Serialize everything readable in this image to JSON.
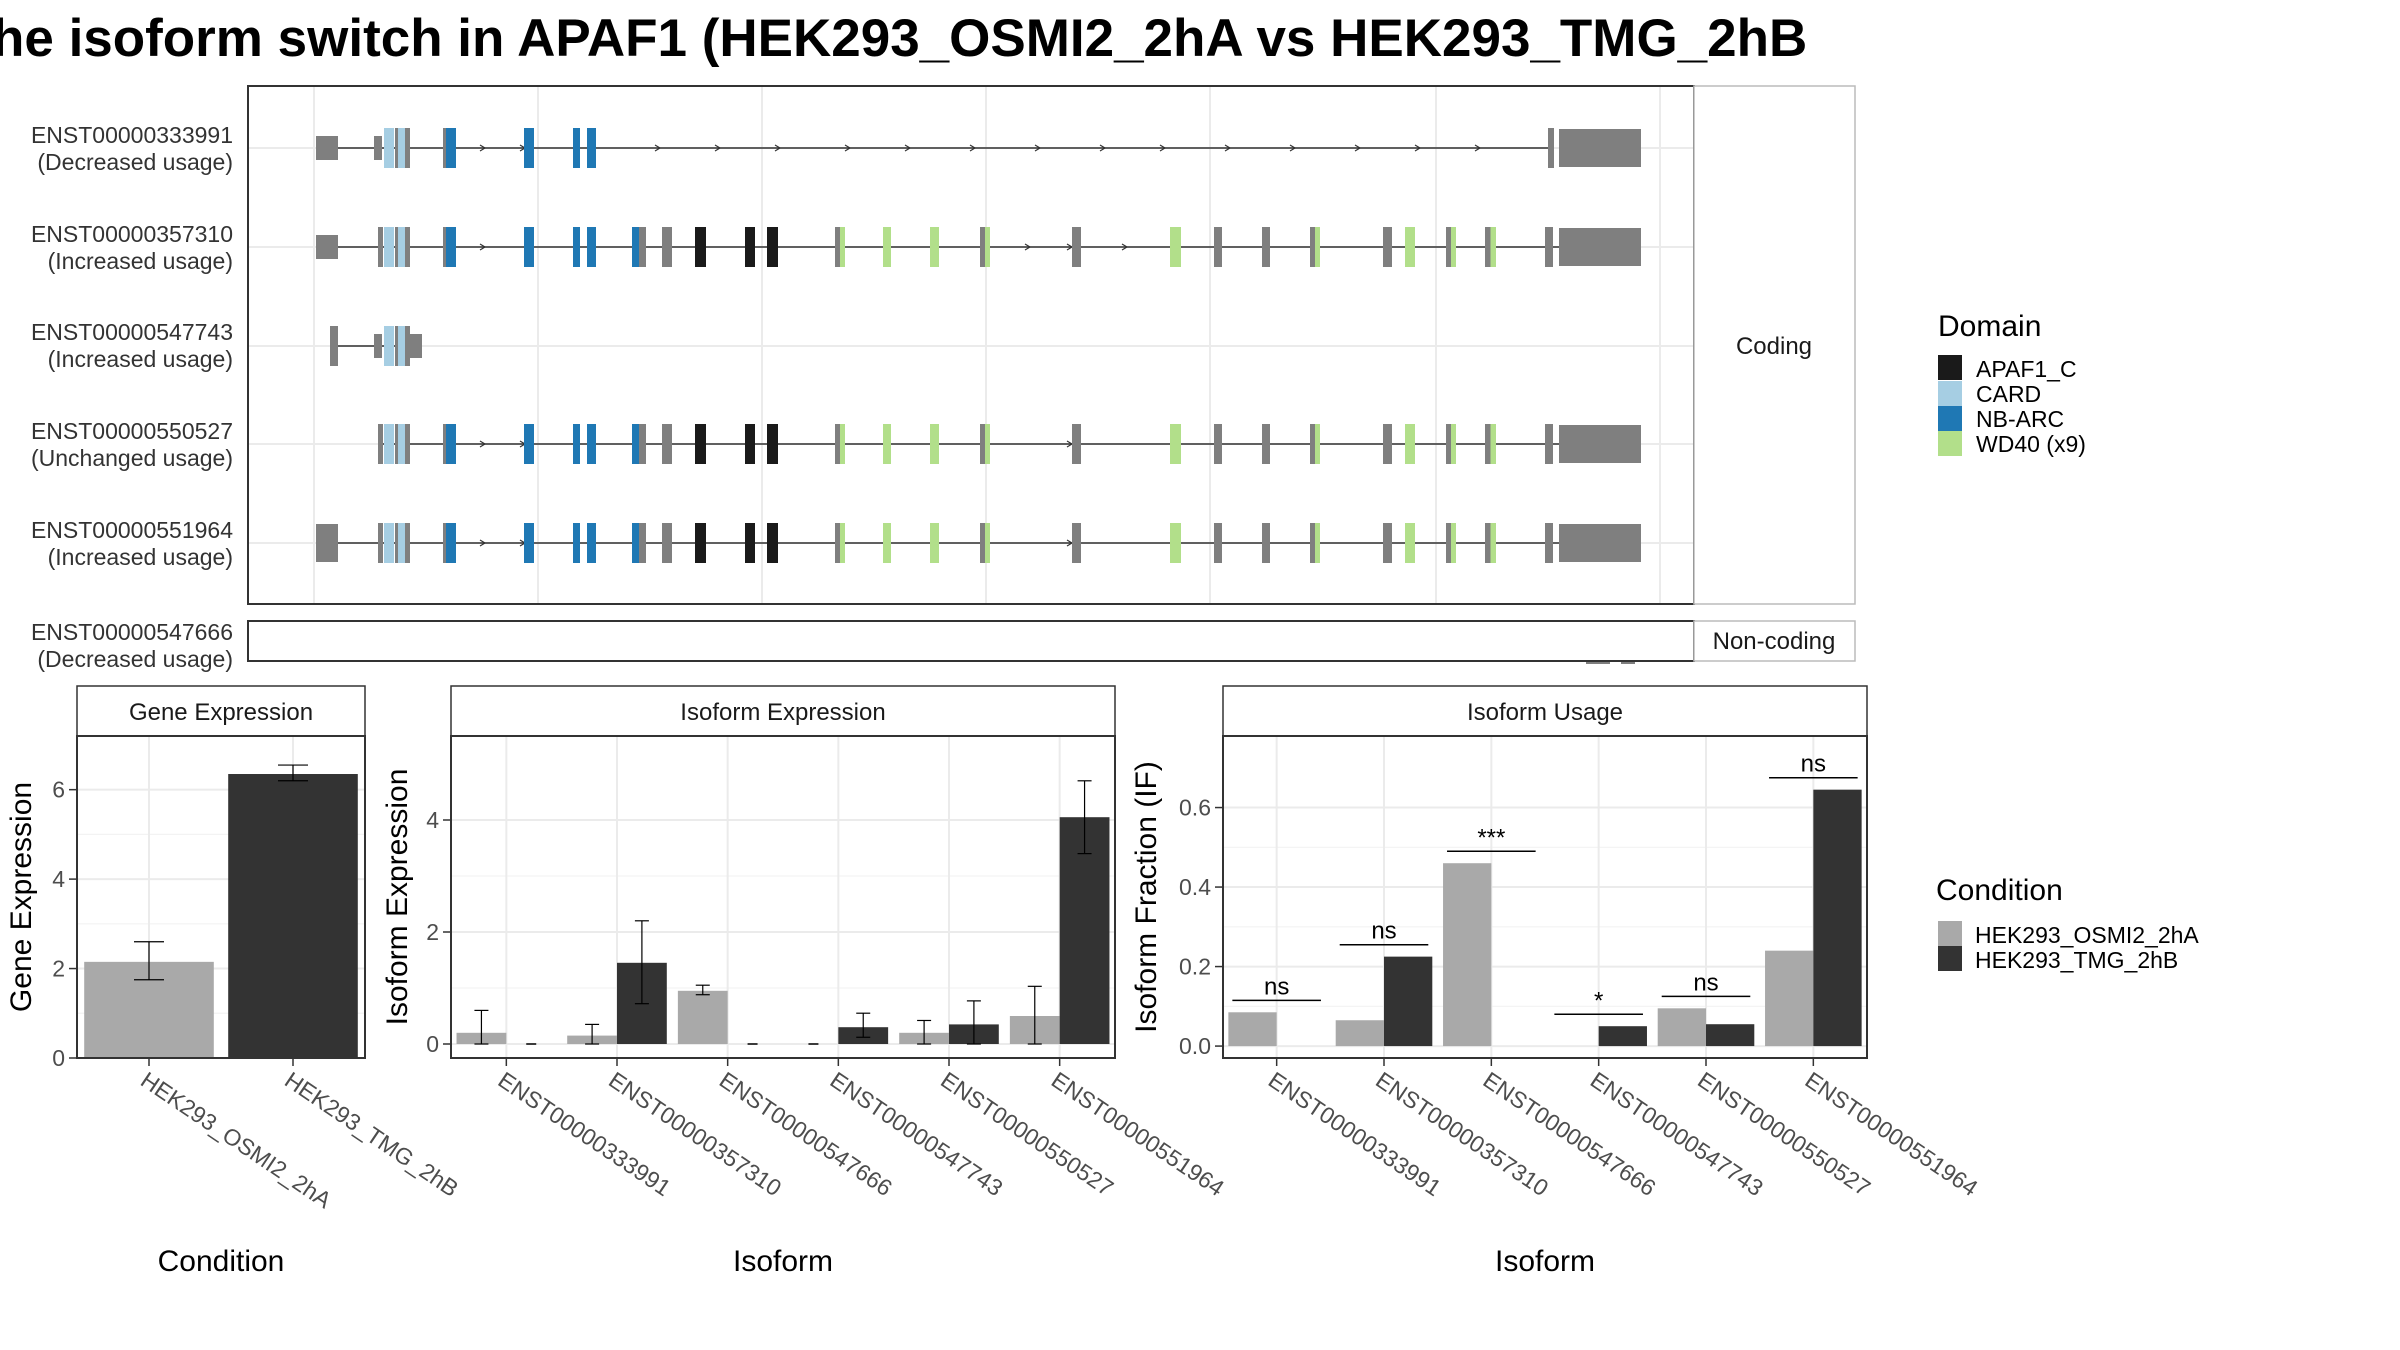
{
  "title": "he isoform switch in APAF1 (HEK293_OSMI2_2hA vs HEK293_TMG_2hB",
  "colors": {
    "APAF1_C": "#1a1a1a",
    "CARD": "#a6cee3",
    "NB-ARC": "#1f78b4",
    "WD40 (x9)": "#b2df8a",
    "exon": "#7f7f7f",
    "cond1": "#a9a9a9",
    "cond2": "#333333"
  },
  "transcript_panel": {
    "coding_strip": "Coding",
    "noncoding_strip": "Non-coding",
    "rows": [
      {
        "id": "ENST00000333991",
        "usage": "(Decreased usage)"
      },
      {
        "id": "ENST00000357310",
        "usage": "(Increased usage)"
      },
      {
        "id": "ENST00000547743",
        "usage": "(Increased usage)"
      },
      {
        "id": "ENST00000550527",
        "usage": "(Unchanged usage)"
      },
      {
        "id": "ENST00000551964",
        "usage": "(Increased usage)"
      },
      {
        "id": "ENST00000547666",
        "usage": "(Decreased usage)"
      }
    ]
  },
  "legends": {
    "domain": {
      "title": "Domain",
      "items": [
        {
          "label": "APAF1_C",
          "color": "#1a1a1a"
        },
        {
          "label": "CARD",
          "color": "#a6cee3"
        },
        {
          "label": "NB-ARC",
          "color": "#1f78b4"
        },
        {
          "label": "WD40 (x9)",
          "color": "#b2df8a"
        }
      ]
    },
    "condition": {
      "title": "Condition",
      "items": [
        {
          "label": "HEK293_OSMI2_2hA",
          "color": "#a9a9a9"
        },
        {
          "label": "HEK293_TMG_2hB",
          "color": "#333333"
        }
      ]
    }
  },
  "chart_data": [
    {
      "type": "bar",
      "title": "Gene Expression",
      "xlabel": "Condition",
      "ylabel": "Gene Expression",
      "ylim": [
        0,
        7.2
      ],
      "yticks": [
        0,
        2,
        4,
        6
      ],
      "categories": [
        "HEK293_OSMI2_2hA",
        "HEK293_TMG_2hB"
      ],
      "values": [
        2.15,
        6.35
      ],
      "errors": [
        [
          1.75,
          2.6
        ],
        [
          6.2,
          6.55
        ]
      ],
      "colors": [
        "#a9a9a9",
        "#333333"
      ]
    },
    {
      "type": "bar",
      "title": "Isoform Expression",
      "xlabel": "Isoform",
      "ylabel": "Isoform Expression",
      "ylim": [
        -0.25,
        5.5
      ],
      "yticks": [
        0,
        2,
        4
      ],
      "categories": [
        "ENST00000333991",
        "ENST00000357310",
        "ENST00000547666",
        "ENST00000547743",
        "ENST00000550527",
        "ENST00000551964"
      ],
      "series": [
        {
          "name": "HEK293_OSMI2_2hA",
          "values": [
            0.2,
            0.15,
            0.95,
            0.0,
            0.2,
            0.5
          ],
          "errors": [
            [
              0.0,
              0.6
            ],
            [
              0.0,
              0.35
            ],
            [
              0.88,
              1.05
            ],
            [
              0.0,
              0.0
            ],
            [
              0.0,
              0.42
            ],
            [
              0.0,
              1.03
            ]
          ]
        },
        {
          "name": "HEK293_TMG_2hB",
          "values": [
            0.0,
            1.45,
            0.0,
            0.3,
            0.35,
            4.05
          ],
          "errors": [
            [
              0.0,
              0.0
            ],
            [
              0.72,
              2.2
            ],
            [
              0.0,
              0.0
            ],
            [
              0.12,
              0.55
            ],
            [
              0.0,
              0.77
            ],
            [
              3.4,
              4.7
            ]
          ]
        }
      ]
    },
    {
      "type": "bar",
      "title": "Isoform Usage",
      "xlabel": "Isoform",
      "ylabel": "Isoform Fraction (IF)",
      "ylim": [
        -0.03,
        0.78
      ],
      "yticks": [
        0.0,
        0.2,
        0.4,
        0.6
      ],
      "categories": [
        "ENST00000333991",
        "ENST00000357310",
        "ENST00000547666",
        "ENST00000547743",
        "ENST00000550527",
        "ENST00000551964"
      ],
      "series": [
        {
          "name": "HEK293_OSMI2_2hA",
          "values": [
            0.085,
            0.065,
            0.46,
            0.0,
            0.095,
            0.24
          ]
        },
        {
          "name": "HEK293_TMG_2hB",
          "values": [
            0.0,
            0.225,
            0.0,
            0.05,
            0.055,
            0.645
          ]
        }
      ],
      "significance": [
        "ns",
        "ns",
        "***",
        "*",
        "ns",
        "ns"
      ]
    }
  ]
}
